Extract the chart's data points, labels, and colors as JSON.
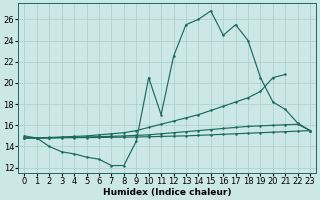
{
  "xlabel": "Humidex (Indice chaleur)",
  "x": [
    0,
    1,
    2,
    3,
    4,
    5,
    6,
    7,
    8,
    9,
    10,
    11,
    12,
    13,
    14,
    15,
    16,
    17,
    18,
    19,
    20,
    21,
    22,
    23
  ],
  "line_main": [
    15.0,
    14.8,
    14.0,
    13.5,
    13.3,
    13.0,
    12.8,
    12.2,
    12.2,
    14.5,
    20.5,
    17.0,
    22.5,
    25.5,
    26.0,
    26.8,
    24.5,
    25.5,
    24.0,
    20.5,
    18.2,
    17.5,
    16.2,
    15.5
  ],
  "line_upper_x": [
    0,
    1,
    2,
    3,
    4,
    5,
    6,
    7,
    8,
    9,
    10,
    11,
    12,
    13,
    14,
    15,
    16,
    17,
    18,
    19,
    20,
    21,
    22,
    23
  ],
  "line_upper": [
    14.8,
    14.8,
    14.85,
    14.9,
    14.95,
    15.0,
    15.1,
    15.2,
    15.3,
    15.5,
    15.8,
    16.1,
    16.4,
    16.7,
    17.0,
    17.4,
    17.8,
    18.2,
    18.6,
    19.2,
    20.5,
    20.8,
    null,
    null
  ],
  "line_mid_x": [
    0,
    1,
    2,
    3,
    4,
    5,
    6,
    7,
    8,
    9,
    10,
    11,
    12,
    13,
    14,
    15,
    16,
    17,
    18,
    19,
    20,
    21,
    22,
    23
  ],
  "line_mid": [
    14.8,
    14.8,
    14.82,
    14.85,
    14.87,
    14.9,
    14.93,
    14.96,
    15.0,
    15.05,
    15.1,
    15.2,
    15.3,
    15.4,
    15.5,
    15.6,
    15.7,
    15.8,
    15.9,
    15.95,
    16.0,
    16.05,
    16.1,
    15.5
  ],
  "line_low_x": [
    0,
    1,
    2,
    3,
    4,
    5,
    6,
    7,
    8,
    9,
    10,
    11,
    12,
    13,
    14,
    15,
    16,
    17,
    18,
    19,
    20,
    21,
    22,
    23
  ],
  "line_low": [
    14.8,
    14.8,
    14.8,
    14.82,
    14.83,
    14.84,
    14.85,
    14.87,
    14.88,
    14.9,
    14.92,
    14.95,
    14.98,
    15.0,
    15.05,
    15.1,
    15.15,
    15.2,
    15.25,
    15.3,
    15.35,
    15.4,
    15.45,
    15.5
  ],
  "ylim": [
    11.5,
    27.5
  ],
  "xlim": [
    -0.5,
    23.5
  ],
  "yticks": [
    12,
    14,
    16,
    18,
    20,
    22,
    24,
    26
  ],
  "xticks": [
    0,
    1,
    2,
    3,
    4,
    5,
    6,
    7,
    8,
    9,
    10,
    11,
    12,
    13,
    14,
    15,
    16,
    17,
    18,
    19,
    20,
    21,
    22,
    23
  ],
  "bg_color": "#cce8e4",
  "grid_color": "#aaccc8",
  "line_color": "#1a6b5a",
  "label_fontsize": 6.5,
  "tick_fontsize": 6.0
}
